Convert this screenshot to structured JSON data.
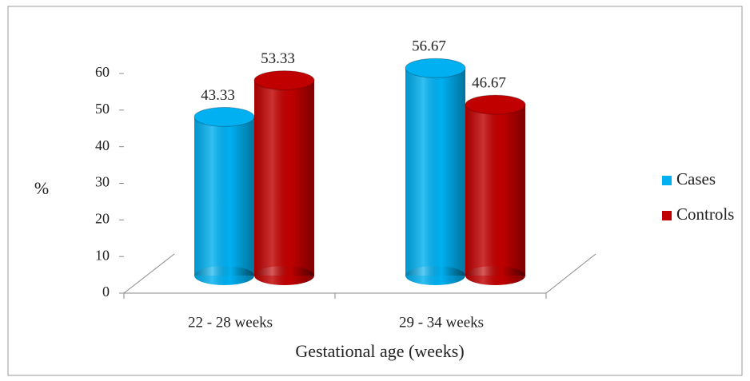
{
  "chart_data": {
    "type": "bar",
    "categories": [
      "22 - 28 weeks",
      "29 - 34 weeks"
    ],
    "series": [
      {
        "name": "Cases",
        "color": "#00b0f0",
        "values": [
          43.33,
          56.67
        ]
      },
      {
        "name": "Controls",
        "color": "#c00000",
        "values": [
          53.33,
          46.67
        ]
      }
    ],
    "ylim": [
      0,
      60
    ],
    "yticks": [
      0,
      10,
      20,
      30,
      40,
      50,
      60
    ],
    "y_label": "%",
    "x_label": "Gestational age (weeks)",
    "legend": "right"
  }
}
